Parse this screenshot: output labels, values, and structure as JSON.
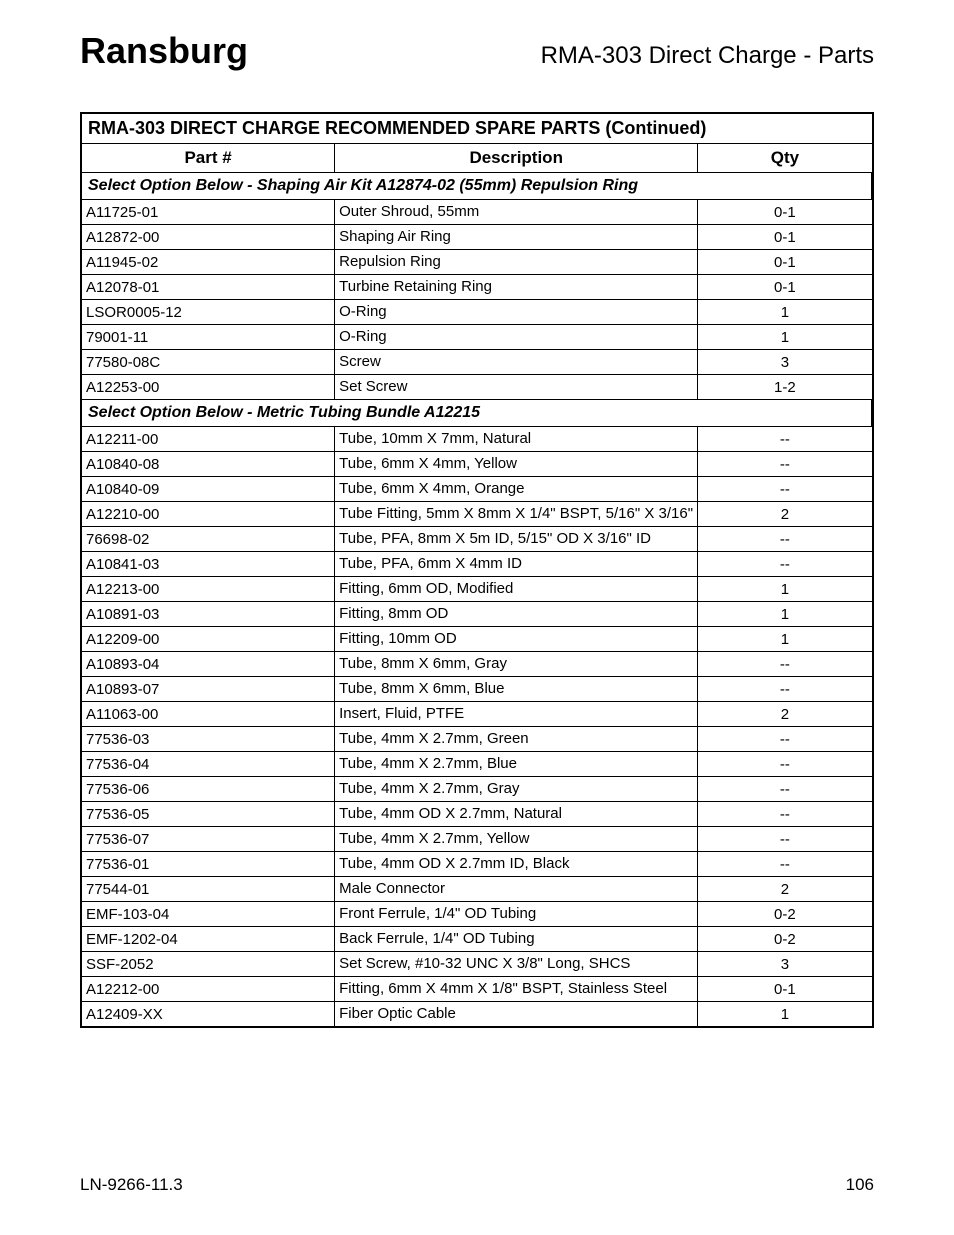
{
  "brand": "Ransburg",
  "title": "RMA-303 Direct Charge - Parts",
  "table": {
    "title": "RMA-303 DIRECT CHARGE RECOMMENDED SPARE PARTS (Continued)",
    "columns": [
      "Part #",
      "Description",
      "Qty"
    ],
    "section1": "Select Option Below - Shaping Air Kit A12874-02 (55mm) Repulsion Ring",
    "rows1": [
      {
        "part": "A11725-01",
        "desc": "Outer Shroud, 55mm",
        "qty": "0-1"
      },
      {
        "part": "A12872-00",
        "desc": "Shaping Air Ring",
        "qty": "0-1"
      },
      {
        "part": "A11945-02",
        "desc": "Repulsion Ring",
        "qty": "0-1"
      },
      {
        "part": "A12078-01",
        "desc": "Turbine Retaining Ring",
        "qty": "0-1"
      },
      {
        "part": "LSOR0005-12",
        "desc": "O-Ring",
        "qty": "1"
      },
      {
        "part": "79001-11",
        "desc": "O-Ring",
        "qty": "1"
      },
      {
        "part": "77580-08C",
        "desc": "Screw",
        "qty": "3"
      },
      {
        "part": "A12253-00",
        "desc": "Set Screw",
        "qty": "1-2"
      }
    ],
    "section2": "Select Option Below - Metric Tubing Bundle A12215",
    "rows2": [
      {
        "part": "A12211-00",
        "desc": "Tube, 10mm X 7mm, Natural",
        "qty": "--"
      },
      {
        "part": "A10840-08",
        "desc": "Tube, 6mm X 4mm, Yellow",
        "qty": "--"
      },
      {
        "part": "A10840-09",
        "desc": "Tube, 6mm X 4mm, Orange",
        "qty": "--"
      },
      {
        "part": "A12210-00",
        "desc": "Tube Fitting, 5mm X 8mm X 1/4\" BSPT, 5/16\" X 3/16\"",
        "qty": "2"
      },
      {
        "part": "76698-02",
        "desc": "Tube, PFA, 8mm X 5m ID, 5/15\" OD X 3/16\" ID",
        "qty": "--"
      },
      {
        "part": "A10841-03",
        "desc": "Tube, PFA, 6mm X 4mm ID",
        "qty": "--"
      },
      {
        "part": "A12213-00",
        "desc": "Fitting, 6mm OD, Modified",
        "qty": "1"
      },
      {
        "part": "A10891-03",
        "desc": "Fitting, 8mm OD",
        "qty": "1"
      },
      {
        "part": "A12209-00",
        "desc": "Fitting, 10mm OD",
        "qty": "1"
      },
      {
        "part": "A10893-04",
        "desc": "Tube, 8mm X 6mm, Gray",
        "qty": "--"
      },
      {
        "part": "A10893-07",
        "desc": "Tube, 8mm X 6mm, Blue",
        "qty": "--"
      },
      {
        "part": "A11063-00",
        "desc": "Insert, Fluid, PTFE",
        "qty": "2"
      },
      {
        "part": "77536-03",
        "desc": "Tube, 4mm X 2.7mm, Green",
        "qty": "--"
      },
      {
        "part": "77536-04",
        "desc": "Tube, 4mm X 2.7mm, Blue",
        "qty": "--"
      },
      {
        "part": "77536-06",
        "desc": "Tube, 4mm X 2.7mm, Gray",
        "qty": "--"
      },
      {
        "part": "77536-05",
        "desc": "Tube, 4mm OD X 2.7mm, Natural",
        "qty": "--"
      },
      {
        "part": "77536-07",
        "desc": "Tube, 4mm X 2.7mm, Yellow",
        "qty": "--"
      },
      {
        "part": "77536-01",
        "desc": "Tube, 4mm OD X 2.7mm ID, Black",
        "qty": "--"
      },
      {
        "part": "77544-01",
        "desc": "Male Connector",
        "qty": "2"
      },
      {
        "part": "EMF-103-04",
        "desc": "Front Ferrule, 1/4\" OD Tubing",
        "qty": "0-2"
      },
      {
        "part": "EMF-1202-04",
        "desc": "Back Ferrule, 1/4\" OD Tubing",
        "qty": "0-2"
      },
      {
        "part": "SSF-2052",
        "desc": "Set Screw, #10-32 UNC X 3/8\" Long, SHCS",
        "qty": "3"
      },
      {
        "part": "A12212-00",
        "desc": "Fitting, 6mm X 4mm X 1/8\" BSPT, Stainless Steel",
        "qty": "0-1"
      },
      {
        "part": "A12409-XX",
        "desc": "Fiber Optic Cable",
        "qty": "1"
      }
    ]
  },
  "footer": {
    "doc_id": "LN-9266-11.3",
    "page_num": "106"
  }
}
